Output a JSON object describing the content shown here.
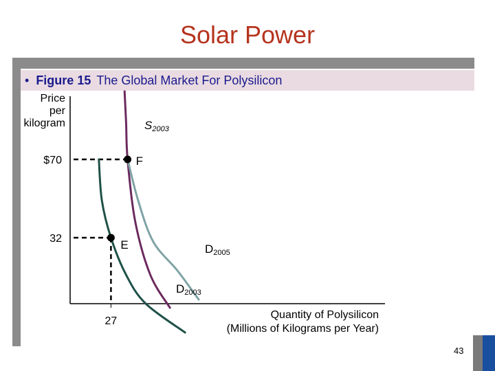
{
  "slide": {
    "title": "Solar Power",
    "bullet": "•",
    "figure_label": "Figure 15",
    "figure_title": "The Global Market For Polysilicon",
    "page_number": "43"
  },
  "colors": {
    "title": "#b5341e",
    "supply": "#6b2a5e",
    "demand_2003": "#1f5148",
    "demand_2005": "#7fa3a6",
    "guides": "#000000"
  },
  "chart_data": {
    "type": "line",
    "title": "The Global Market For Polysilicon",
    "ylabel": [
      "Price",
      "per",
      "kilogram"
    ],
    "xlabel": [
      "Quantity of Polysilicon",
      "(Millions of Kilograms per Year)"
    ],
    "y_ticks": [
      {
        "value": 70,
        "label": "$70"
      },
      {
        "value": 32,
        "label": "32"
      }
    ],
    "x_ticks": [
      {
        "value": 27,
        "label": "27"
      }
    ],
    "series": [
      {
        "name": "S",
        "sub": "2003",
        "kind": "supply",
        "label_points": [
          [
            36,
            103
          ],
          [
            37,
            88
          ],
          [
            38,
            70
          ],
          [
            43,
            40
          ],
          [
            53,
            14
          ],
          [
            66,
            -2
          ]
        ]
      },
      {
        "name": "D",
        "sub": "2005",
        "kind": "demand",
        "points": [
          [
            38,
            70
          ],
          [
            45,
            50
          ],
          [
            55,
            30
          ],
          [
            71,
            16
          ],
          [
            85,
            2
          ]
        ]
      },
      {
        "name": "D",
        "sub": "2003",
        "kind": "demand",
        "points": [
          [
            19,
            70
          ],
          [
            21,
            50
          ],
          [
            27,
            32
          ],
          [
            37,
            14
          ],
          [
            50,
            0
          ],
          [
            76,
            -14
          ]
        ]
      }
    ],
    "points": [
      {
        "label": "F",
        "x": 38,
        "y": 70
      },
      {
        "label": "E",
        "x": 27,
        "y": 32
      }
    ]
  }
}
